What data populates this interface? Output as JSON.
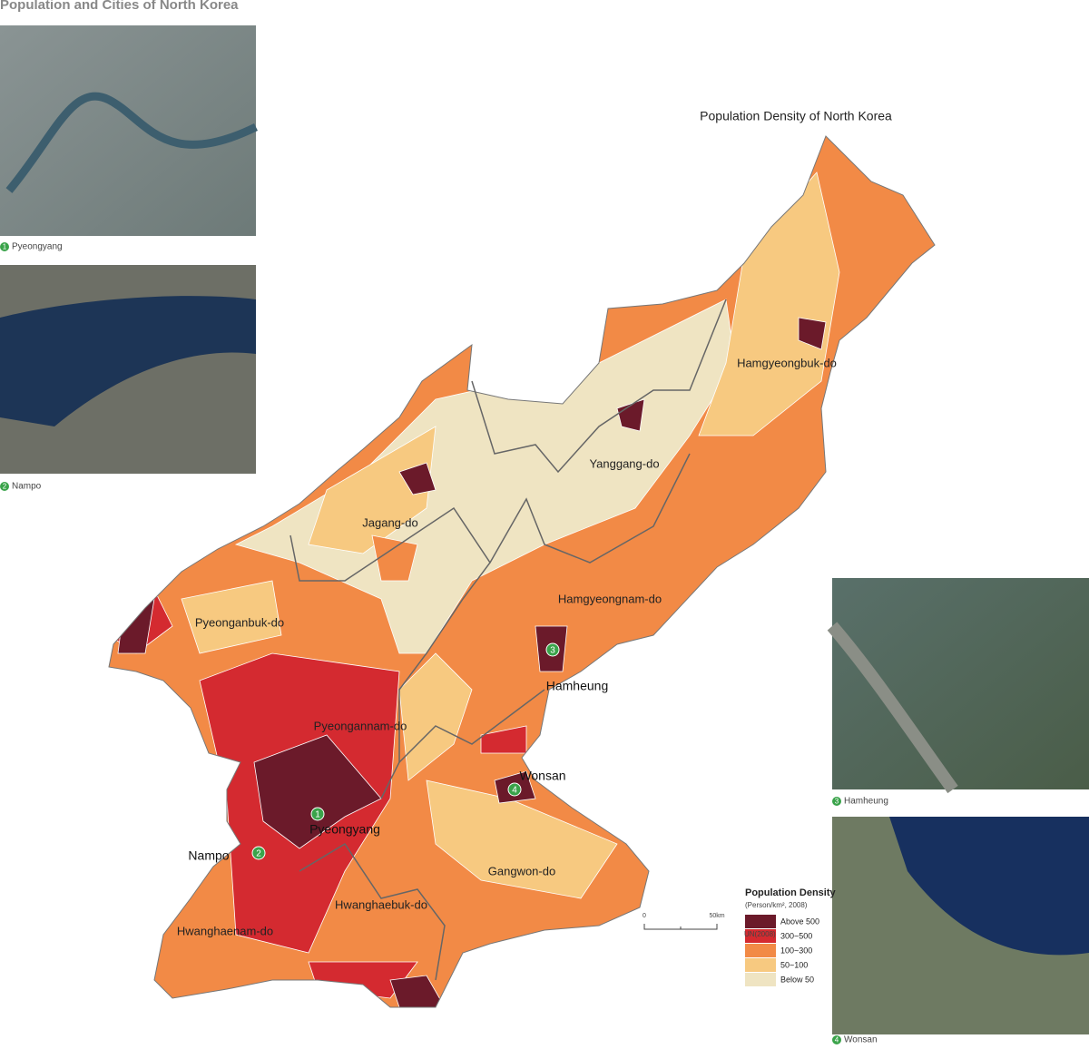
{
  "title": "Population and Cities of North Korea",
  "photos": [
    {
      "number": "1",
      "caption": "Pyeongyang"
    },
    {
      "number": "2",
      "caption": "Nampo"
    },
    {
      "number": "3",
      "caption": "Hamheung"
    },
    {
      "number": "4",
      "caption": "Wonsan"
    }
  ],
  "map": {
    "title": "Population Density of North Korea",
    "provinces": [
      "Hamgyeongbuk-do",
      "Yanggang-do",
      "Jagang-do",
      "Hamgyeongnam-do",
      "Pyeonganbuk-do",
      "Pyeongannam-do",
      "Hwanghaebuk-do",
      "Hwanghaenam-do",
      "Gangwon-do"
    ],
    "cities": [
      {
        "number": "1",
        "name": "Pyeongyang"
      },
      {
        "number": "2",
        "name": "Nampo"
      },
      {
        "number": "3",
        "name": "Hamheung"
      },
      {
        "number": "4",
        "name": "Wonsan"
      }
    ]
  },
  "legend": {
    "title": "Population Density",
    "unit": "(Person/km², 2008)",
    "items": [
      {
        "label": "Above 500",
        "color": "#6b1a2a"
      },
      {
        "label": "300~500",
        "color": "#d42a30"
      },
      {
        "label": "100~300",
        "color": "#f28a46"
      },
      {
        "label": "50~100",
        "color": "#f7c980"
      },
      {
        "label": "Below 50",
        "color": "#efe4c2"
      }
    ]
  },
  "scale": {
    "labels": [
      "0",
      "50km"
    ]
  },
  "source": "UN(2008)"
}
